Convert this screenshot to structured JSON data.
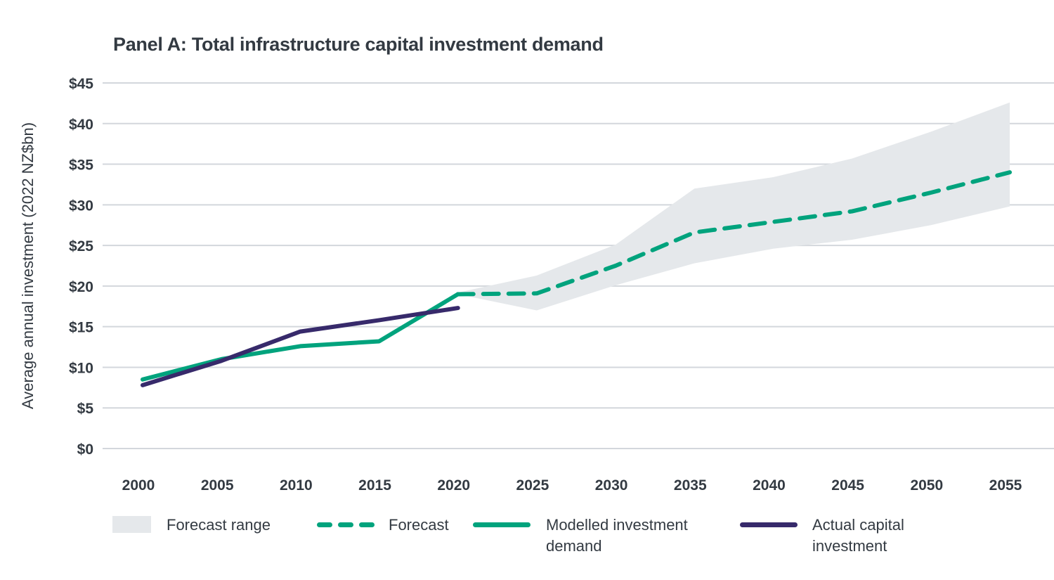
{
  "colors": {
    "forecast_range": "#e5e8eb",
    "modelled": "#00a37d",
    "actual": "#372a6b",
    "grid": "#d3d7dc",
    "text": "#333a42"
  },
  "chart_data": {
    "type": "line",
    "title": "Panel A: Total infrastructure capital investment demand",
    "xlabel": "",
    "ylabel": "Average annual investment (2022 NZ$bn)",
    "ylim": [
      0,
      45
    ],
    "xlim": [
      2000,
      2055
    ],
    "grid": "horizontal",
    "yticks": [
      0,
      5,
      10,
      15,
      20,
      25,
      30,
      35,
      40,
      45
    ],
    "ytick_labels": [
      "$0",
      "$5",
      "$10",
      "$15",
      "$20",
      "$25",
      "$30",
      "$35",
      "$40",
      "$45"
    ],
    "xticks": [
      2000,
      2005,
      2010,
      2015,
      2020,
      2025,
      2030,
      2035,
      2040,
      2045,
      2050,
      2055
    ],
    "xtick_labels": [
      "2000",
      "2005",
      "2010",
      "2015",
      "2020",
      "2025",
      "2030",
      "2035",
      "2040",
      "2045",
      "2050",
      "2055"
    ],
    "legend_position": "bottom",
    "series": [
      {
        "name": "Forecast range",
        "kind": "band",
        "x": [
          2020,
          2025,
          2030,
          2035,
          2040,
          2045,
          2050,
          2055
        ],
        "upper": [
          19.2,
          21.3,
          25.1,
          32.0,
          33.4,
          35.7,
          39.0,
          42.6
        ],
        "lower": [
          19.0,
          17.0,
          20.1,
          22.8,
          24.6,
          25.7,
          27.5,
          29.8
        ]
      },
      {
        "name": "Forecast",
        "kind": "dashed",
        "x": [
          2020,
          2025,
          2030,
          2035,
          2040,
          2045,
          2050,
          2055
        ],
        "values": [
          19.0,
          19.1,
          22.5,
          26.6,
          27.9,
          29.2,
          31.5,
          34.0
        ]
      },
      {
        "name": "Modelled investment demand",
        "kind": "solid",
        "x": [
          2000,
          2005,
          2010,
          2015,
          2020
        ],
        "values": [
          8.5,
          11.0,
          12.6,
          13.2,
          19.0
        ]
      },
      {
        "name": "Actual capital investment",
        "kind": "solid",
        "x": [
          2000,
          2005,
          2010,
          2015,
          2020
        ],
        "values": [
          7.8,
          10.8,
          14.4,
          15.8,
          17.3
        ]
      }
    ]
  },
  "legend": {
    "range": "Forecast range",
    "forecast": "Forecast",
    "modelled_line1": "Modelled investment",
    "modelled_line2": "demand",
    "actual_line1": "Actual capital",
    "actual_line2": "investment"
  }
}
